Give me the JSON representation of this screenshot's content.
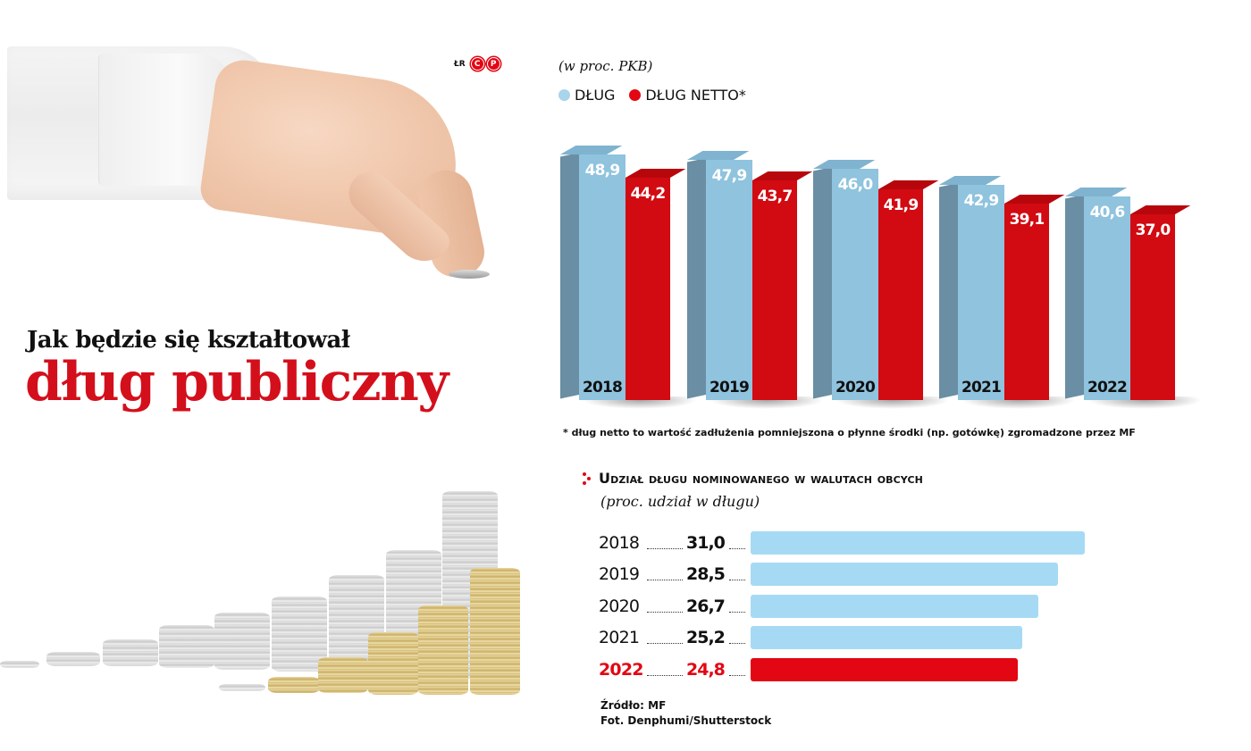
{
  "credit": {
    "author": "ŁR",
    "badge_letters": [
      "C",
      "P"
    ]
  },
  "headline": {
    "top": "Jak będzie się kształtował",
    "main": "dług publiczny"
  },
  "column_chart": {
    "unit_label": "(w proc. PKB)",
    "legend": [
      {
        "label": "DŁUG",
        "color": "#a9d4ec"
      },
      {
        "label": "DŁUG NETTO*",
        "color": "#e30613"
      }
    ],
    "footnote": "* dług netto to wartość zadłużenia pomniejszona o płynne środki (np. gotówkę) zgromadzone przez MF"
  },
  "bar_chart": {
    "title": "Udział długu nominowanego w walutach obcych",
    "caption": "(proc. udział w długu)",
    "rows": [
      {
        "year": "2018",
        "value": "31,0"
      },
      {
        "year": "2019",
        "value": "28,5"
      },
      {
        "year": "2020",
        "value": "26,7"
      },
      {
        "year": "2021",
        "value": "25,2"
      },
      {
        "year": "2022",
        "value": "24,8"
      }
    ]
  },
  "source": {
    "line1": "Źródło: MF",
    "line2": "Fot. Denphumi/Shutterstock"
  },
  "colors": {
    "debt_front": "#8fc3de",
    "debt_side": "#6a8ea3",
    "debt_top": "#7fb3cf",
    "net_front": "#d20a11",
    "net_side": "#a9070d",
    "net_top": "#b8070c",
    "hbar_blue": "#a6daf4",
    "hbar_red": "#e30613",
    "accent_red": "#d40f1c"
  },
  "chart_data": [
    {
      "type": "bar",
      "title": "Jak będzie się kształtował dług publiczny",
      "subtitle": "(w proc. PKB)",
      "categories": [
        "2018",
        "2019",
        "2020",
        "2021",
        "2022"
      ],
      "series": [
        {
          "name": "DŁUG",
          "values": [
            48.9,
            47.9,
            46.0,
            42.9,
            40.6
          ],
          "color": "#8fc3de"
        },
        {
          "name": "DŁUG NETTO*",
          "values": [
            44.2,
            43.7,
            41.9,
            39.1,
            37.0
          ],
          "color": "#d20a11"
        }
      ],
      "xlabel": "",
      "ylabel": "% PKB",
      "legend_position": "top-left",
      "grid": false,
      "annotations": [
        "* dług netto to wartość zadłużenia pomniejszona o płynne środki (np. gotówkę) zgromadzone przez MF"
      ]
    },
    {
      "type": "bar",
      "orientation": "horizontal",
      "title": "Udział długu nominowanego w walutach obcych",
      "subtitle": "(proc. udział w długu)",
      "categories": [
        "2018",
        "2019",
        "2020",
        "2021",
        "2022"
      ],
      "values": [
        31.0,
        28.5,
        26.7,
        25.2,
        24.8
      ],
      "highlight": "2022",
      "xlabel": "",
      "ylabel": "",
      "grid": false,
      "source": "Źródło: MF"
    }
  ]
}
